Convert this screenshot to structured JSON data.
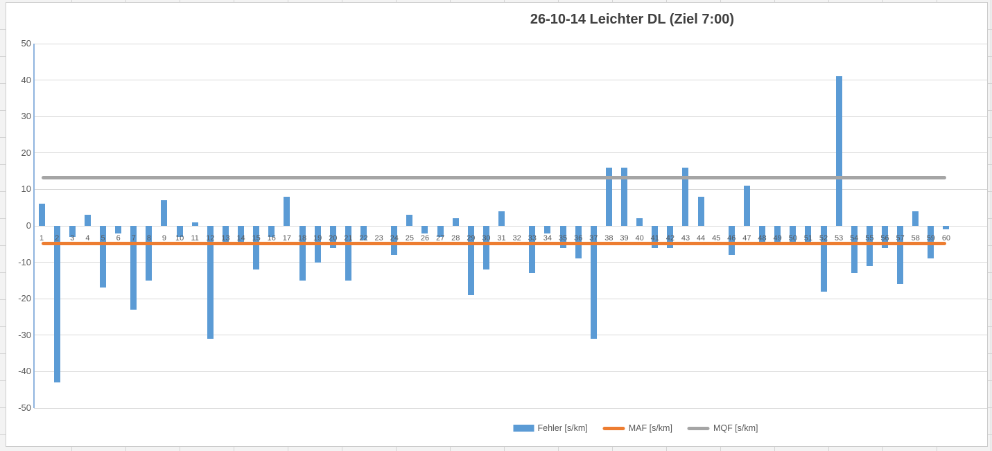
{
  "chart_data": {
    "type": "bar",
    "title": "26-10-14 Leichter DL (Ziel 7:00)",
    "categories": [
      1,
      2,
      3,
      4,
      5,
      6,
      7,
      8,
      9,
      10,
      11,
      12,
      13,
      14,
      15,
      16,
      17,
      18,
      19,
      20,
      21,
      22,
      23,
      24,
      25,
      26,
      27,
      28,
      29,
      30,
      31,
      32,
      33,
      34,
      35,
      36,
      37,
      38,
      39,
      40,
      41,
      42,
      43,
      44,
      45,
      46,
      47,
      48,
      49,
      50,
      51,
      52,
      53,
      54,
      55,
      56,
      57,
      58,
      59,
      60
    ],
    "series": [
      {
        "name": "Fehler [s/km]",
        "type": "bar",
        "color": "#5B9BD5",
        "values": [
          6,
          -43,
          -3,
          3,
          -17,
          -2,
          -23,
          -15,
          7,
          -3,
          1,
          -31,
          -5,
          -5,
          -12,
          -3,
          8,
          -15,
          -10,
          -6,
          -15,
          -4,
          0,
          -8,
          3,
          -2,
          -3,
          2,
          -19,
          -12,
          4,
          0,
          -13,
          -2,
          -6,
          -9,
          -31,
          16,
          16,
          2,
          -6,
          -6,
          16,
          8,
          0,
          -8,
          11,
          -5,
          -5,
          -5,
          -5,
          -18,
          41,
          -13,
          -11,
          -6,
          -16,
          4,
          -9,
          -1
        ]
      },
      {
        "name": "MAF [s/km]",
        "type": "line",
        "color": "#ED7D31",
        "constant_value": -4.9
      },
      {
        "name": "MQF [s/km]",
        "type": "line",
        "color": "#A5A5A5",
        "constant_value": 13.3
      }
    ],
    "xlabel": "",
    "ylabel": "",
    "ylim": [
      -50,
      50
    ],
    "yticks": [
      50,
      40,
      30,
      20,
      10,
      0,
      -10,
      -20,
      -30,
      -40,
      -50
    ],
    "grid": true,
    "legend_position": "bottom",
    "axis_colors": {
      "gridline": "#d9d9d9",
      "y_axis_line": "#8fb4de",
      "tick_text": "#595959",
      "title_text": "#404040"
    }
  }
}
